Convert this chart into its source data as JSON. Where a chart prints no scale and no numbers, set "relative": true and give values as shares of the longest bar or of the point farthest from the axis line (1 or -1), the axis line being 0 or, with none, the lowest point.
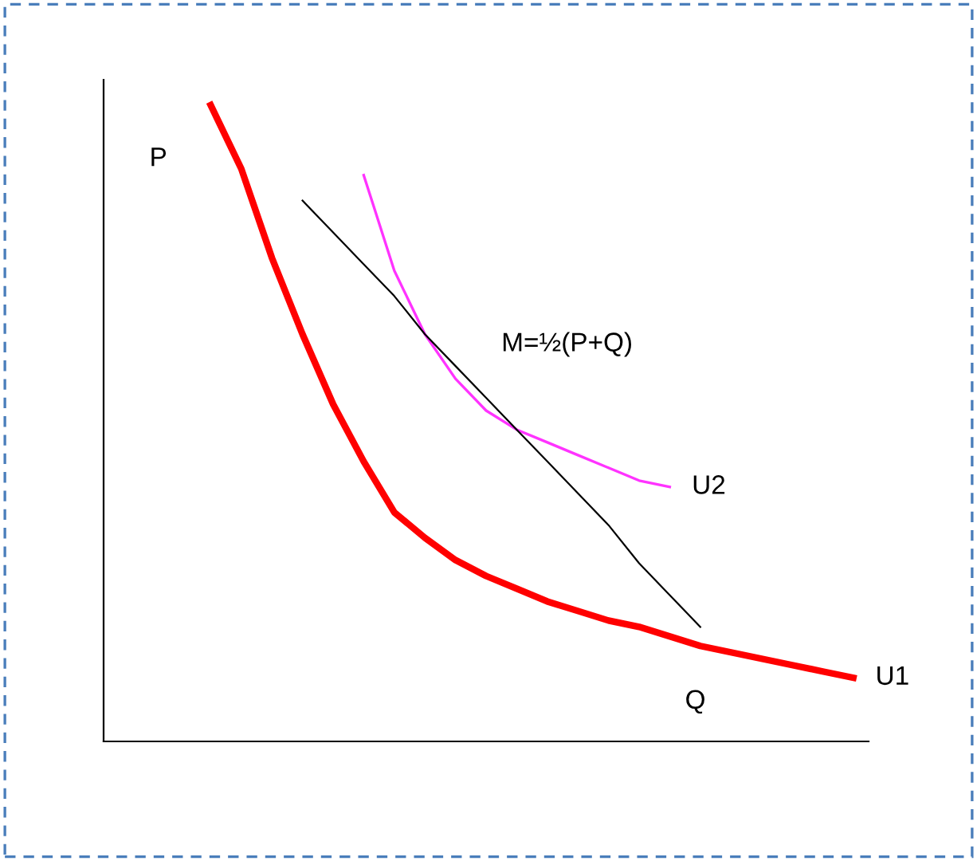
{
  "chart_data": {
    "type": "line",
    "relative": true,
    "tick_labels": false,
    "marker": "none",
    "categories": [
      null,
      null,
      null,
      null,
      null,
      null,
      null,
      null,
      null,
      null,
      null,
      null,
      null,
      null,
      null,
      null,
      null,
      null,
      null,
      null,
      null,
      null,
      null,
      null,
      null
    ],
    "series": [
      {
        "name": "U1",
        "color": "#ff0000",
        "values": [
          null,
          null,
          null,
          1.0,
          0.9,
          0.76,
          0.64,
          0.53,
          0.44,
          0.36,
          0.32,
          0.285,
          0.26,
          0.24,
          0.22,
          0.205,
          0.19,
          0.18,
          0.165,
          0.15,
          0.14,
          0.13,
          0.12,
          0.11,
          0.1
        ]
      },
      {
        "name": "U2",
        "color": "#ff33ff",
        "values": [
          null,
          null,
          null,
          null,
          null,
          null,
          null,
          null,
          0.89,
          0.74,
          0.64,
          0.57,
          0.52,
          0.49,
          0.47,
          0.45,
          0.43,
          0.41,
          0.4,
          null,
          null,
          null,
          null,
          null,
          null
        ]
      },
      {
        "color": "#000000",
        "values": [
          null,
          null,
          null,
          null,
          null,
          null,
          0.85,
          0.8,
          0.75,
          0.7,
          0.64,
          0.59,
          0.54,
          0.49,
          0.44,
          0.39,
          0.34,
          0.28,
          0.23,
          0.18,
          null,
          null,
          null,
          null,
          null
        ]
      }
    ],
    "annotations": [
      "P",
      "M=½(P+Q)",
      "Q"
    ]
  }
}
